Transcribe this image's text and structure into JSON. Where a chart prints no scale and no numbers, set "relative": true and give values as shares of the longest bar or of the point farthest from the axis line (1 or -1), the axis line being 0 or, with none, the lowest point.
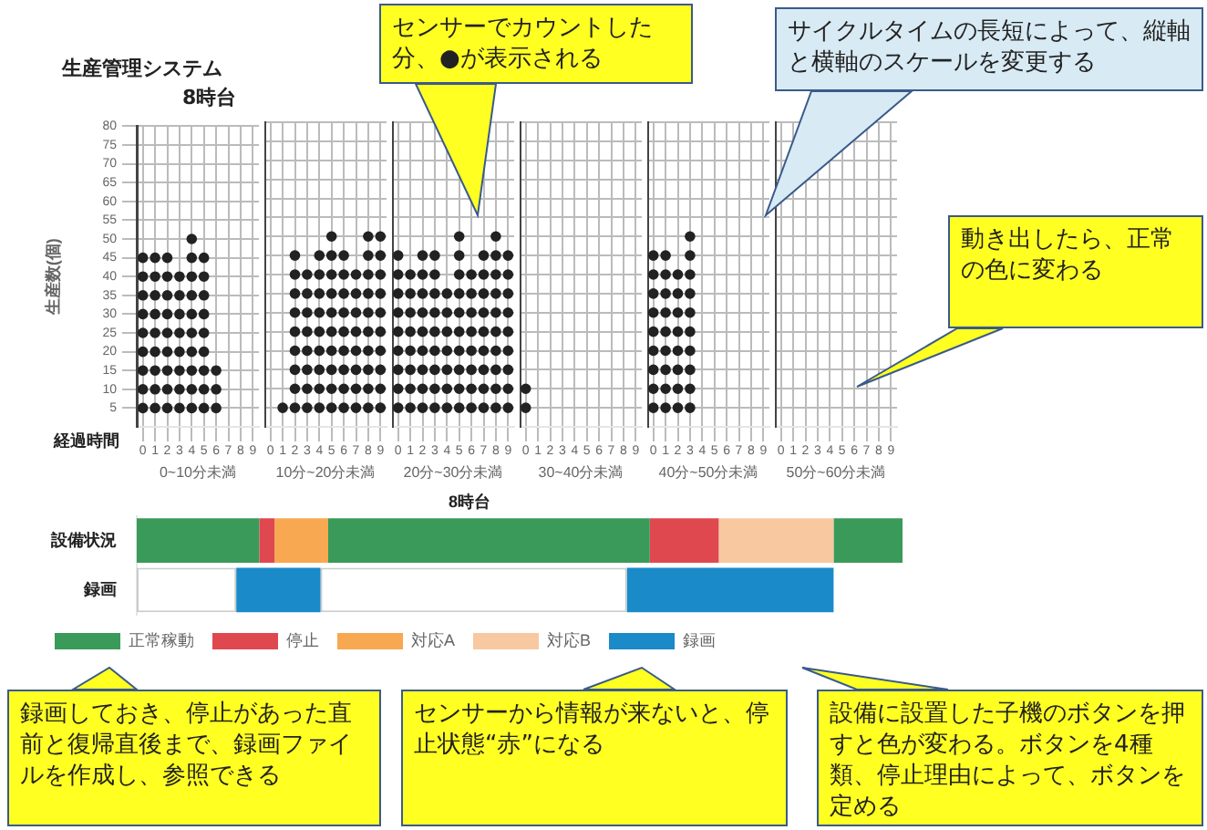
{
  "chart_data": [
    {
      "type": "scatter",
      "title": "生産管理システム",
      "subtitle": "8時台",
      "xlabel": "0~10分未満",
      "ylabel": "生産数(個)",
      "marker": "circle",
      "annotations": [
        "経過時間"
      ],
      "xlim": [
        -0.5,
        9.5
      ],
      "xticks": [
        0,
        1,
        2,
        3,
        4,
        5,
        6,
        7,
        8,
        9
      ],
      "ylim": [
        0,
        80
      ],
      "yticks": [
        5,
        10,
        15,
        20,
        25,
        30,
        35,
        40,
        45,
        50,
        55,
        60,
        65,
        70,
        75,
        80
      ],
      "grid": true,
      "series": [
        {
          "color": "#222222",
          "x": [
            0,
            0,
            0,
            0,
            0,
            0,
            0,
            0,
            0,
            1,
            1,
            1,
            1,
            1,
            1,
            1,
            1,
            1,
            2,
            2,
            2,
            2,
            2,
            2,
            2,
            2,
            2,
            3,
            3,
            3,
            3,
            3,
            3,
            3,
            3,
            4,
            4,
            4,
            4,
            4,
            4,
            4,
            4,
            4,
            4,
            5,
            5,
            5,
            5,
            5,
            5,
            5,
            5,
            5,
            6,
            6,
            6
          ],
          "values": [
            5,
            10,
            15,
            20,
            25,
            30,
            35,
            40,
            45,
            5,
            10,
            15,
            20,
            25,
            30,
            35,
            40,
            45,
            5,
            10,
            15,
            20,
            25,
            30,
            35,
            40,
            45,
            5,
            10,
            15,
            20,
            25,
            30,
            35,
            40,
            5,
            10,
            15,
            20,
            25,
            30,
            35,
            40,
            45,
            50,
            5,
            10,
            15,
            20,
            25,
            30,
            35,
            40,
            45,
            5,
            10,
            15
          ]
        }
      ]
    },
    {
      "type": "scatter",
      "xlabel": "10分~20分未満",
      "marker": "circle",
      "tick_labels": "x",
      "xlim": [
        -0.5,
        9.5
      ],
      "xticks": [
        0,
        1,
        2,
        3,
        4,
        5,
        6,
        7,
        8,
        9
      ],
      "ylim": [
        0,
        80
      ],
      "yticks": [
        5,
        10,
        15,
        20,
        25,
        30,
        35,
        40,
        45,
        50,
        55,
        60,
        65,
        70,
        75,
        80
      ],
      "grid": true,
      "series": [
        {
          "color": "#222222",
          "x": [
            1,
            2,
            2,
            2,
            2,
            2,
            2,
            2,
            2,
            2,
            3,
            3,
            3,
            3,
            3,
            3,
            3,
            3,
            4,
            4,
            4,
            4,
            4,
            4,
            4,
            4,
            4,
            5,
            5,
            5,
            5,
            5,
            5,
            5,
            5,
            5,
            5,
            6,
            6,
            6,
            6,
            6,
            6,
            6,
            6,
            6,
            7,
            7,
            7,
            7,
            7,
            7,
            7,
            7,
            8,
            8,
            8,
            8,
            8,
            8,
            8,
            8,
            8,
            8,
            9,
            9,
            9,
            9,
            9,
            9,
            9,
            9,
            9,
            9
          ],
          "values": [
            5,
            5,
            10,
            15,
            20,
            25,
            30,
            35,
            40,
            45,
            5,
            10,
            15,
            20,
            25,
            30,
            35,
            40,
            5,
            10,
            15,
            20,
            25,
            30,
            35,
            40,
            45,
            5,
            10,
            15,
            20,
            25,
            30,
            35,
            40,
            45,
            50,
            5,
            10,
            15,
            20,
            25,
            30,
            35,
            40,
            45,
            5,
            10,
            15,
            20,
            25,
            30,
            35,
            40,
            5,
            10,
            15,
            20,
            25,
            30,
            35,
            40,
            45,
            50,
            5,
            10,
            15,
            20,
            25,
            30,
            35,
            40,
            45,
            50
          ]
        }
      ]
    },
    {
      "type": "scatter",
      "xlabel": "20分~30分未満",
      "marker": "circle",
      "tick_labels": "x",
      "xlim": [
        -0.5,
        9.5
      ],
      "xticks": [
        0,
        1,
        2,
        3,
        4,
        5,
        6,
        7,
        8,
        9
      ],
      "ylim": [
        0,
        80
      ],
      "yticks": [
        5,
        10,
        15,
        20,
        25,
        30,
        35,
        40,
        45,
        50,
        55,
        60,
        65,
        70,
        75,
        80
      ],
      "grid": true,
      "series": [
        {
          "color": "#222222",
          "x": [
            0,
            0,
            0,
            0,
            0,
            0,
            0,
            0,
            0,
            1,
            1,
            1,
            1,
            1,
            1,
            1,
            1,
            2,
            2,
            2,
            2,
            2,
            2,
            2,
            2,
            2,
            3,
            3,
            3,
            3,
            3,
            3,
            3,
            3,
            3,
            4,
            4,
            4,
            4,
            4,
            4,
            4,
            5,
            5,
            5,
            5,
            5,
            5,
            5,
            5,
            5,
            5,
            6,
            6,
            6,
            6,
            6,
            6,
            6,
            6,
            7,
            7,
            7,
            7,
            7,
            7,
            7,
            7,
            7,
            8,
            8,
            8,
            8,
            8,
            8,
            8,
            8,
            8,
            8,
            9,
            9,
            9,
            9,
            9,
            9,
            9,
            9,
            9
          ],
          "values": [
            5,
            10,
            15,
            20,
            25,
            30,
            35,
            40,
            45,
            5,
            10,
            15,
            20,
            25,
            30,
            35,
            40,
            5,
            10,
            15,
            20,
            25,
            30,
            35,
            40,
            45,
            5,
            10,
            15,
            20,
            25,
            30,
            35,
            40,
            45,
            5,
            10,
            15,
            20,
            25,
            30,
            35,
            5,
            10,
            15,
            20,
            25,
            30,
            35,
            40,
            45,
            50,
            5,
            10,
            15,
            20,
            25,
            30,
            35,
            40,
            5,
            10,
            15,
            20,
            25,
            30,
            35,
            40,
            45,
            5,
            10,
            15,
            20,
            25,
            30,
            35,
            40,
            45,
            50,
            5,
            10,
            15,
            20,
            25,
            30,
            35,
            40,
            45
          ]
        }
      ]
    },
    {
      "type": "scatter",
      "xlabel": "30~40分未満",
      "marker": "circle",
      "tick_labels": "x",
      "xlim": [
        -0.5,
        9.5
      ],
      "xticks": [
        0,
        1,
        2,
        3,
        4,
        5,
        6,
        7,
        8,
        9
      ],
      "ylim": [
        0,
        80
      ],
      "yticks": [
        5,
        10,
        15,
        20,
        25,
        30,
        35,
        40,
        45,
        50,
        55,
        60,
        65,
        70,
        75,
        80
      ],
      "grid": true,
      "series": [
        {
          "color": "#222222",
          "x": [
            0,
            0
          ],
          "values": [
            5,
            10
          ]
        }
      ]
    },
    {
      "type": "scatter",
      "xlabel": "40分~50分未満",
      "marker": "circle",
      "tick_labels": "x",
      "xlim": [
        -0.5,
        9.5
      ],
      "xticks": [
        0,
        1,
        2,
        3,
        4,
        5,
        6,
        7,
        8,
        9
      ],
      "ylim": [
        0,
        80
      ],
      "yticks": [
        5,
        10,
        15,
        20,
        25,
        30,
        35,
        40,
        45,
        50,
        55,
        60,
        65,
        70,
        75,
        80
      ],
      "grid": true,
      "series": [
        {
          "color": "#222222",
          "x": [
            0,
            0,
            0,
            0,
            0,
            0,
            0,
            0,
            0,
            1,
            1,
            1,
            1,
            1,
            1,
            1,
            1,
            1,
            2,
            2,
            2,
            2,
            2,
            2,
            2,
            2,
            3,
            3,
            3,
            3,
            3,
            3,
            3,
            3,
            3,
            3
          ],
          "values": [
            5,
            10,
            15,
            20,
            25,
            30,
            35,
            40,
            45,
            5,
            10,
            15,
            20,
            25,
            30,
            35,
            40,
            45,
            5,
            10,
            15,
            20,
            25,
            30,
            35,
            40,
            5,
            10,
            15,
            20,
            25,
            30,
            35,
            40,
            45,
            50
          ]
        }
      ]
    },
    {
      "type": "scatter",
      "xlabel": "50分~60分未満",
      "tick_labels": "x",
      "xlim": [
        -0.5,
        9.5
      ],
      "xticks": [
        0,
        1,
        2,
        3,
        4,
        5,
        6,
        7,
        8,
        9
      ],
      "ylim": [
        0,
        80
      ],
      "yticks": [
        5,
        10,
        15,
        20,
        25,
        30,
        35,
        40,
        45,
        50,
        55,
        60,
        65,
        70,
        75,
        80
      ],
      "grid": true
    },
    {
      "type": "bar",
      "orientation": "horizontal",
      "stacked": true,
      "relative": true,
      "title": "8時台",
      "categories": [
        "設備状況",
        "録画"
      ],
      "tick_labels": "y",
      "legend": "bottom",
      "series": [
        {
          "name": "正常稼動",
          "color": "#3a9a5a",
          "values": [
            0.16,
            null
          ]
        },
        {
          "name": "停止",
          "color": "#e04850",
          "values": [
            0.02,
            null
          ]
        },
        {
          "name": "対応A",
          "color": "#f8a850",
          "values": [
            0.07,
            null
          ]
        },
        {
          "color": "#3a9a5a",
          "values": [
            0.42,
            null
          ]
        },
        {
          "color": "#e04850",
          "values": [
            0.09,
            null
          ]
        },
        {
          "name": "対応B",
          "color": "#f8c8a0",
          "values": [
            0.15,
            null
          ]
        },
        {
          "color": "#3a9a5a",
          "values": [
            0.09,
            null
          ]
        },
        {
          "color": "#ffffff",
          "values": [
            null,
            0.13
          ]
        },
        {
          "name": "録画",
          "color": "#1a8ac8",
          "values": [
            null,
            0.11
          ]
        },
        {
          "color": "#ffffff",
          "values": [
            null,
            0.4
          ]
        },
        {
          "color": "#1a8ac8",
          "values": [
            null,
            0.27
          ]
        }
      ],
      "annotations": [
        "センサーでカウントした分、●が表示される",
        "サイクルタイムの長短によって、縦軸と横軸のスケールを変更する",
        "動き出したら、正常の色に変わる",
        "録画しておき、停止があった直前と復帰直後まで、録画ファイルを作成し、参照できる",
        "センサーから情報が来ないと、停止状態“赤”になる",
        "設備に設置した子機のボタンを押すと色が変わる。ボタンを4種類、停止理由によって、ボタンを定める"
      ]
    }
  ]
}
